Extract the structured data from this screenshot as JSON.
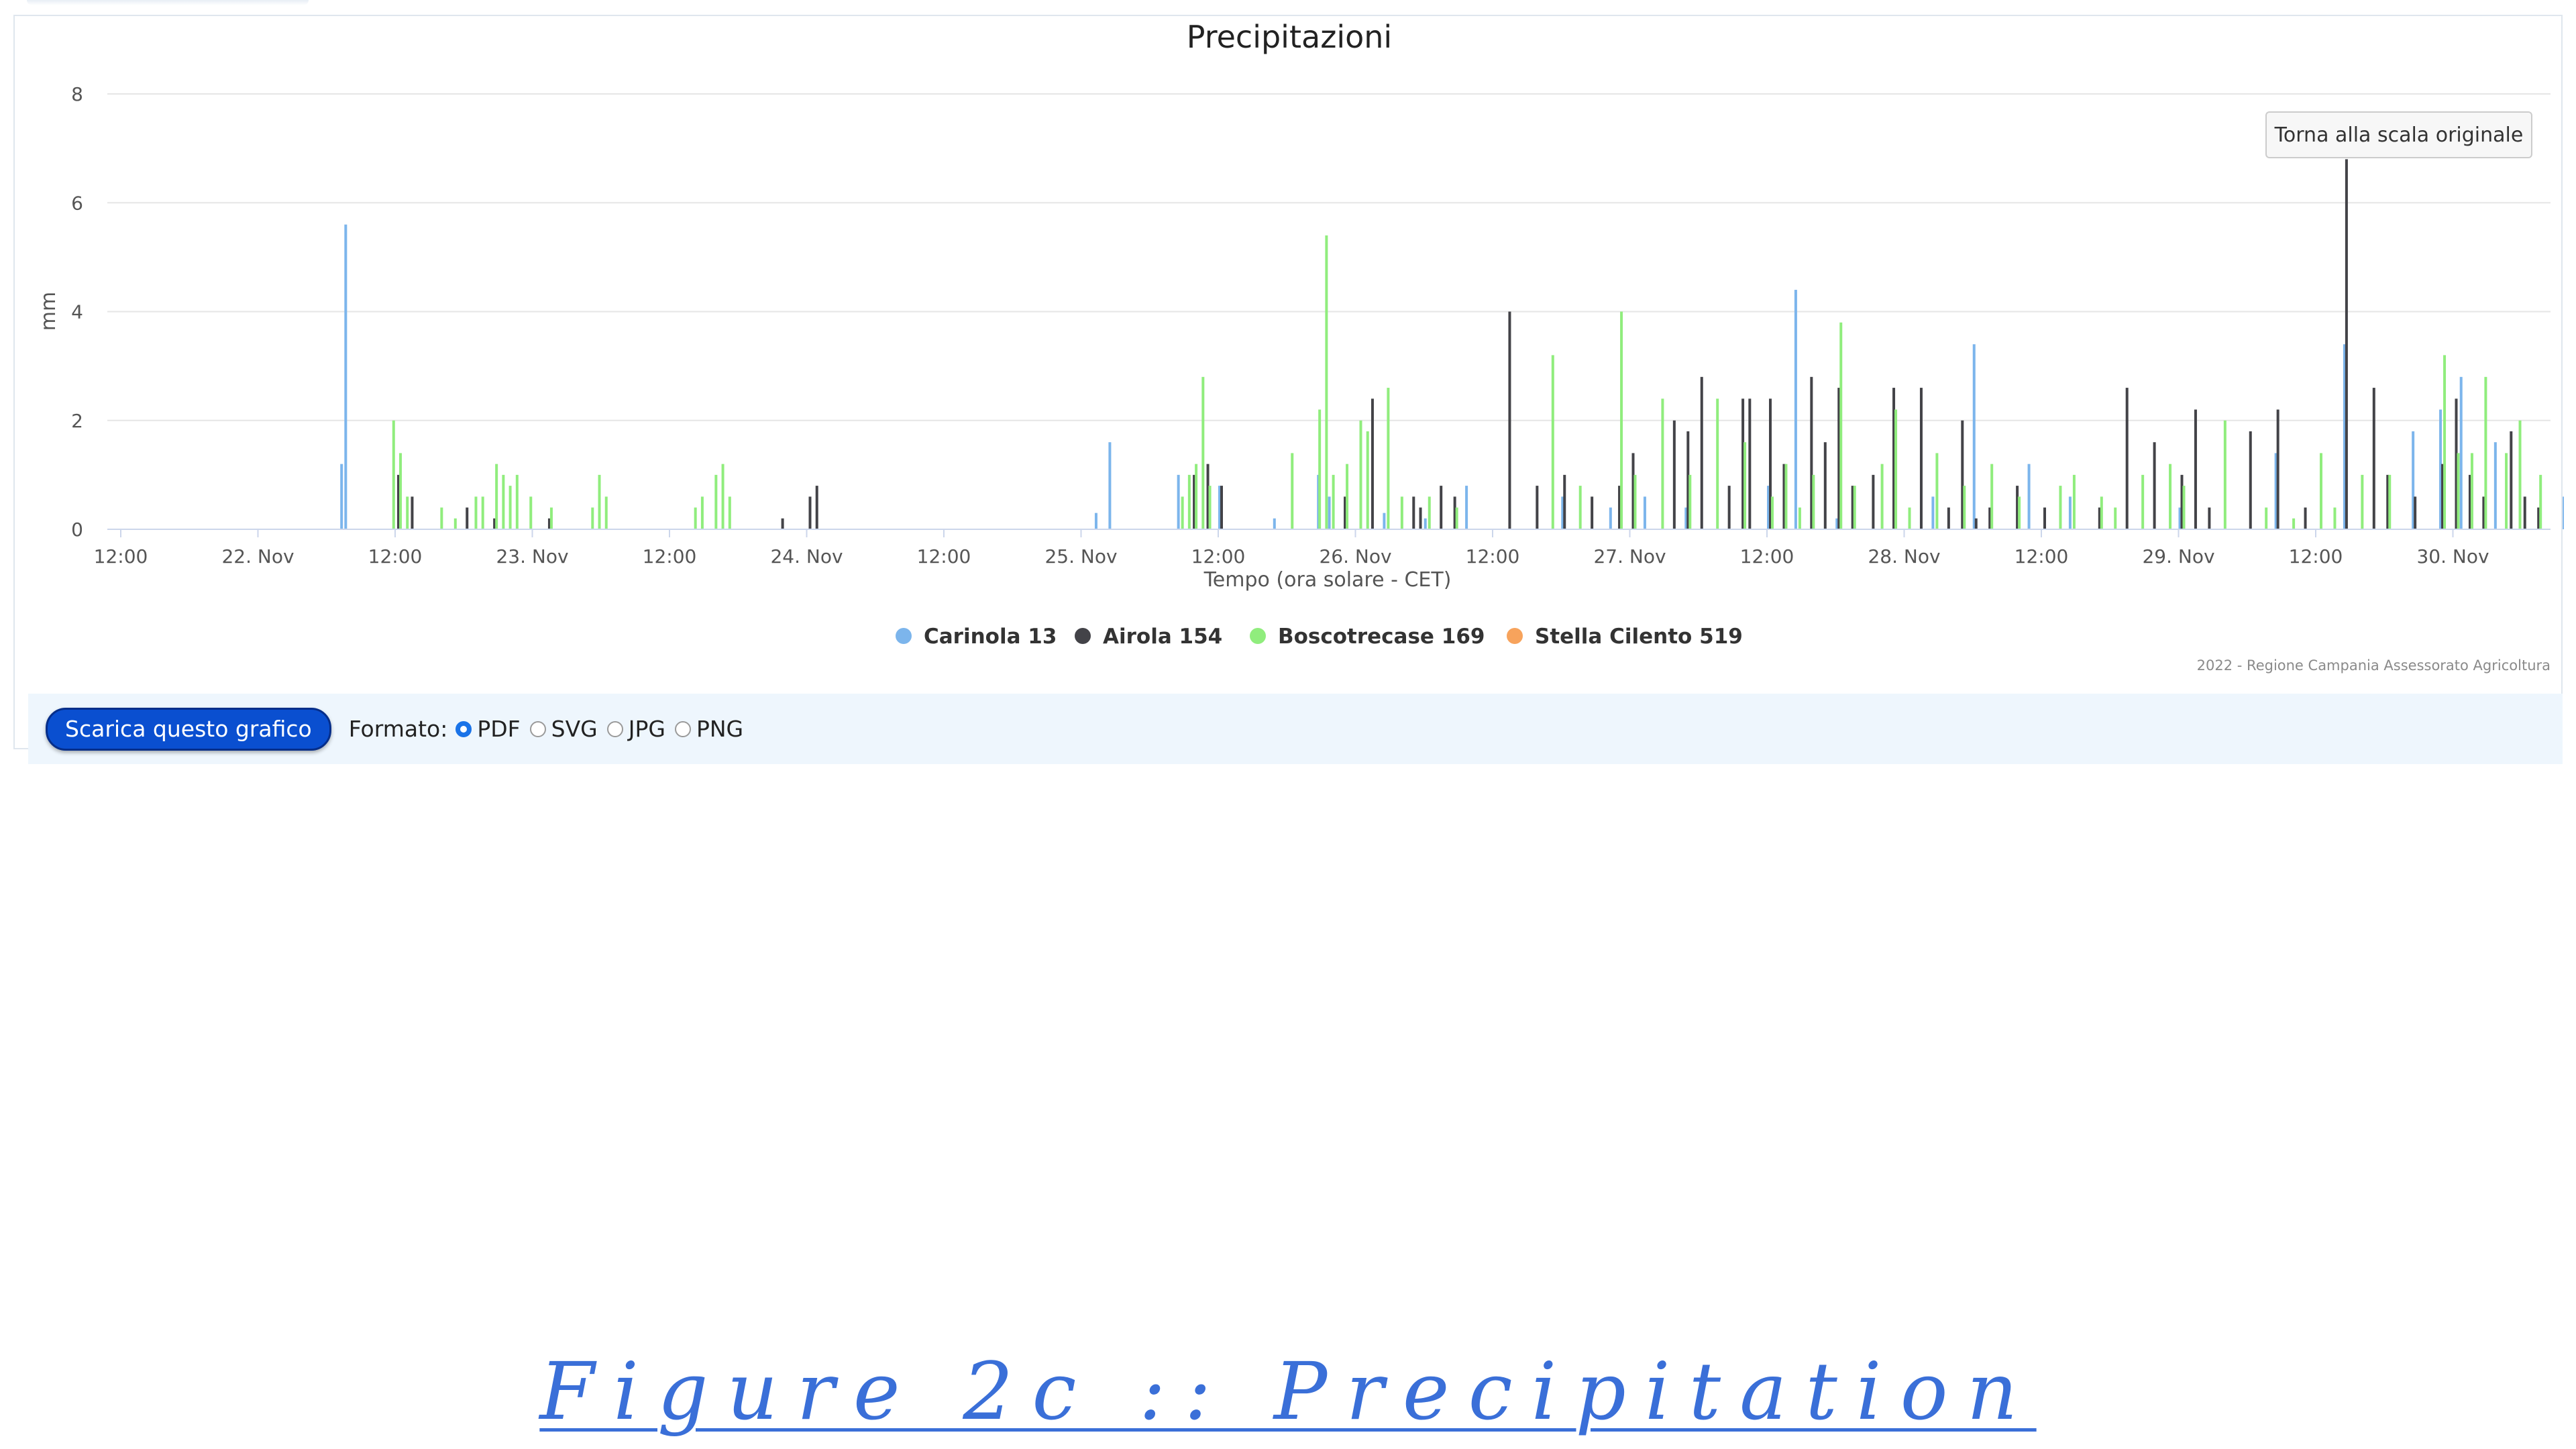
{
  "chart_data": {
    "type": "bar",
    "title": "Precipitazioni",
    "xlabel": "Tempo (ora solare - CET)",
    "ylabel": "mm",
    "ylim": [
      0,
      8
    ],
    "y_ticks": [
      "0",
      "2",
      "4",
      "6",
      "8"
    ],
    "x_ticks": [
      "12:00",
      "22. Nov",
      "12:00",
      "23. Nov",
      "12:00",
      "24. Nov",
      "12:00",
      "25. Nov",
      "12:00",
      "26. Nov",
      "12:00",
      "27. Nov",
      "12:00",
      "28. Nov",
      "12:00",
      "29. Nov",
      "12:00",
      "30. Nov"
    ],
    "grid": true,
    "legend_placement": "bottom-center",
    "series": [
      {
        "name": "Carinola 13",
        "color": "#7cb5ec",
        "points": [
          [
            1.6,
            1.2
          ],
          [
            1.63,
            5.6
          ],
          [
            7.1,
            0.3
          ],
          [
            7.2,
            1.6
          ],
          [
            7.7,
            1.0
          ],
          [
            8.0,
            0.8
          ],
          [
            8.4,
            0.2
          ],
          [
            8.72,
            1.0
          ],
          [
            8.8,
            0.6
          ],
          [
            9.2,
            0.3
          ],
          [
            9.5,
            0.2
          ],
          [
            9.8,
            0.8
          ],
          [
            10.5,
            0.6
          ],
          [
            10.85,
            0.4
          ],
          [
            11.1,
            0.6
          ],
          [
            11.4,
            0.4
          ],
          [
            12.0,
            0.8
          ],
          [
            12.2,
            4.4
          ],
          [
            12.5,
            0.2
          ],
          [
            13.2,
            0.6
          ],
          [
            13.5,
            3.4
          ],
          [
            13.9,
            1.2
          ],
          [
            14.2,
            0.6
          ],
          [
            15.0,
            0.4
          ],
          [
            15.7,
            1.4
          ],
          [
            16.2,
            3.4
          ],
          [
            16.7,
            1.8
          ],
          [
            16.9,
            2.2
          ],
          [
            17.05,
            2.8
          ],
          [
            17.3,
            1.6
          ],
          [
            17.8,
            0.6
          ],
          [
            18.7,
            0.4
          ],
          [
            19.1,
            0.6
          ],
          [
            19.5,
            1.0
          ],
          [
            19.9,
            1.2
          ],
          [
            20.5,
            0.2
          ],
          [
            21.0,
            0.2
          ],
          [
            21.1,
            0.4
          ]
        ]
      },
      {
        "name": "Airola 154",
        "color": "#434348",
        "points": [
          [
            2.0,
            1.0
          ],
          [
            2.1,
            0.6
          ],
          [
            2.5,
            0.4
          ],
          [
            2.7,
            0.2
          ],
          [
            3.1,
            0.2
          ],
          [
            4.8,
            0.2
          ],
          [
            5.0,
            0.6
          ],
          [
            5.05,
            0.8
          ],
          [
            7.8,
            1.0
          ],
          [
            7.9,
            1.2
          ],
          [
            8.0,
            0.8
          ],
          [
            8.9,
            0.6
          ],
          [
            9.1,
            2.4
          ],
          [
            9.4,
            0.6
          ],
          [
            9.45,
            0.4
          ],
          [
            9.6,
            0.8
          ],
          [
            9.7,
            0.6
          ],
          [
            10.1,
            4.0
          ],
          [
            10.3,
            0.8
          ],
          [
            10.5,
            1.0
          ],
          [
            10.7,
            0.6
          ],
          [
            10.9,
            0.8
          ],
          [
            11.0,
            1.4
          ],
          [
            11.3,
            2.0
          ],
          [
            11.4,
            1.8
          ],
          [
            11.5,
            2.8
          ],
          [
            11.7,
            0.8
          ],
          [
            11.8,
            2.4
          ],
          [
            11.85,
            2.4
          ],
          [
            12.0,
            2.4
          ],
          [
            12.1,
            1.2
          ],
          [
            12.3,
            2.8
          ],
          [
            12.4,
            1.6
          ],
          [
            12.5,
            2.6
          ],
          [
            12.6,
            0.8
          ],
          [
            12.75,
            1.0
          ],
          [
            12.9,
            2.6
          ],
          [
            13.1,
            2.6
          ],
          [
            13.3,
            0.4
          ],
          [
            13.4,
            2.0
          ],
          [
            13.5,
            0.2
          ],
          [
            13.6,
            0.4
          ],
          [
            13.8,
            0.8
          ],
          [
            14.0,
            0.4
          ],
          [
            14.4,
            0.4
          ],
          [
            14.6,
            2.6
          ],
          [
            14.8,
            1.6
          ],
          [
            15.0,
            1.0
          ],
          [
            15.1,
            2.2
          ],
          [
            15.2,
            0.4
          ],
          [
            15.5,
            1.8
          ],
          [
            15.7,
            2.2
          ],
          [
            15.9,
            0.4
          ],
          [
            16.2,
            6.8
          ],
          [
            16.4,
            2.6
          ],
          [
            16.5,
            1.0
          ],
          [
            16.7,
            0.6
          ],
          [
            16.9,
            1.2
          ],
          [
            17.0,
            2.4
          ],
          [
            17.1,
            1.0
          ],
          [
            17.2,
            0.6
          ],
          [
            17.4,
            1.8
          ],
          [
            17.5,
            0.6
          ],
          [
            17.6,
            0.4
          ],
          [
            17.9,
            1.0
          ],
          [
            18.1,
            0.4
          ],
          [
            18.3,
            0.2
          ],
          [
            18.5,
            1.2
          ],
          [
            18.6,
            0.6
          ],
          [
            18.75,
            1.0
          ],
          [
            18.9,
            1.4
          ],
          [
            19.0,
            1.0
          ],
          [
            19.2,
            0.8
          ],
          [
            19.4,
            0.6
          ],
          [
            19.5,
            0.4
          ],
          [
            19.7,
            0.2
          ],
          [
            19.8,
            0.4
          ],
          [
            21.1,
            0.4
          ],
          [
            21.15,
            0.6
          ]
        ]
      },
      {
        "name": "Boscotrecase 169",
        "color": "#90ed7d",
        "points": [
          [
            1.95,
            2.0
          ],
          [
            2.0,
            1.4
          ],
          [
            2.05,
            0.6
          ],
          [
            2.3,
            0.4
          ],
          [
            2.4,
            0.2
          ],
          [
            2.55,
            0.6
          ],
          [
            2.6,
            0.6
          ],
          [
            2.7,
            1.2
          ],
          [
            2.75,
            1.0
          ],
          [
            2.8,
            0.8
          ],
          [
            2.85,
            1.0
          ],
          [
            2.95,
            0.6
          ],
          [
            3.1,
            0.4
          ],
          [
            3.4,
            0.4
          ],
          [
            3.45,
            1.0
          ],
          [
            3.5,
            0.6
          ],
          [
            4.15,
            0.4
          ],
          [
            4.2,
            0.6
          ],
          [
            4.3,
            1.0
          ],
          [
            4.35,
            1.2
          ],
          [
            4.4,
            0.6
          ],
          [
            7.7,
            0.6
          ],
          [
            7.75,
            1.0
          ],
          [
            7.8,
            1.2
          ],
          [
            7.85,
            2.8
          ],
          [
            7.9,
            0.8
          ],
          [
            8.5,
            1.4
          ],
          [
            8.7,
            2.2
          ],
          [
            8.75,
            5.4
          ],
          [
            8.8,
            1.0
          ],
          [
            8.9,
            1.2
          ],
          [
            9.0,
            2.0
          ],
          [
            9.05,
            1.8
          ],
          [
            9.2,
            2.6
          ],
          [
            9.3,
            0.6
          ],
          [
            9.5,
            0.6
          ],
          [
            9.7,
            0.4
          ],
          [
            10.4,
            3.2
          ],
          [
            10.6,
            0.8
          ],
          [
            10.9,
            4.0
          ],
          [
            11.0,
            1.0
          ],
          [
            11.2,
            2.4
          ],
          [
            11.4,
            1.0
          ],
          [
            11.6,
            2.4
          ],
          [
            11.8,
            1.6
          ],
          [
            12.0,
            0.6
          ],
          [
            12.1,
            1.2
          ],
          [
            12.2,
            0.4
          ],
          [
            12.3,
            1.0
          ],
          [
            12.5,
            3.8
          ],
          [
            12.6,
            0.8
          ],
          [
            12.8,
            1.2
          ],
          [
            12.9,
            2.2
          ],
          [
            13.0,
            0.4
          ],
          [
            13.2,
            1.4
          ],
          [
            13.4,
            0.8
          ],
          [
            13.6,
            1.2
          ],
          [
            13.8,
            0.6
          ],
          [
            14.1,
            0.8
          ],
          [
            14.2,
            1.0
          ],
          [
            14.4,
            0.6
          ],
          [
            14.5,
            0.4
          ],
          [
            14.7,
            1.0
          ],
          [
            14.9,
            1.2
          ],
          [
            15.0,
            0.8
          ],
          [
            15.3,
            2.0
          ],
          [
            15.6,
            0.4
          ],
          [
            15.8,
            0.2
          ],
          [
            16.0,
            1.4
          ],
          [
            16.1,
            0.4
          ],
          [
            16.3,
            1.0
          ],
          [
            16.5,
            1.0
          ],
          [
            16.9,
            3.2
          ],
          [
            17.0,
            1.4
          ],
          [
            17.1,
            1.4
          ],
          [
            17.2,
            2.8
          ],
          [
            17.35,
            1.4
          ],
          [
            17.45,
            2.0
          ],
          [
            17.6,
            1.0
          ],
          [
            17.8,
            0.6
          ],
          [
            17.9,
            0.6
          ],
          [
            18.0,
            0.6
          ],
          [
            18.1,
            0.4
          ],
          [
            18.35,
            2.8
          ],
          [
            18.6,
            0.4
          ],
          [
            18.8,
            0.2
          ],
          [
            19.1,
            1.0
          ],
          [
            19.3,
            1.4
          ],
          [
            19.4,
            2.6
          ],
          [
            19.5,
            2.8
          ],
          [
            19.6,
            2.4
          ],
          [
            19.8,
            1.4
          ],
          [
            19.9,
            0.8
          ],
          [
            20.0,
            1.6
          ],
          [
            20.2,
            2.0
          ],
          [
            20.3,
            3.2
          ],
          [
            20.4,
            0.8
          ],
          [
            20.5,
            1.0
          ],
          [
            20.6,
            0.6
          ],
          [
            20.7,
            0.6
          ],
          [
            20.8,
            1.0
          ],
          [
            21.0,
            0.8
          ],
          [
            21.1,
            0.2
          ]
        ]
      },
      {
        "name": "Stella Cilento 519",
        "color": "#f7a35c",
        "points": []
      }
    ]
  },
  "reset_zoom_label": "Torna alla scala originale",
  "credits": "2022 - Regione Campania Assessorato Agricoltura",
  "download": {
    "button_label": "Scarica questo grafico",
    "format_label": "Formato:",
    "options": [
      "PDF",
      "SVG",
      "JPG",
      "PNG"
    ],
    "selected": "PDF"
  },
  "caption": "Figure 2c :: Precipitation"
}
